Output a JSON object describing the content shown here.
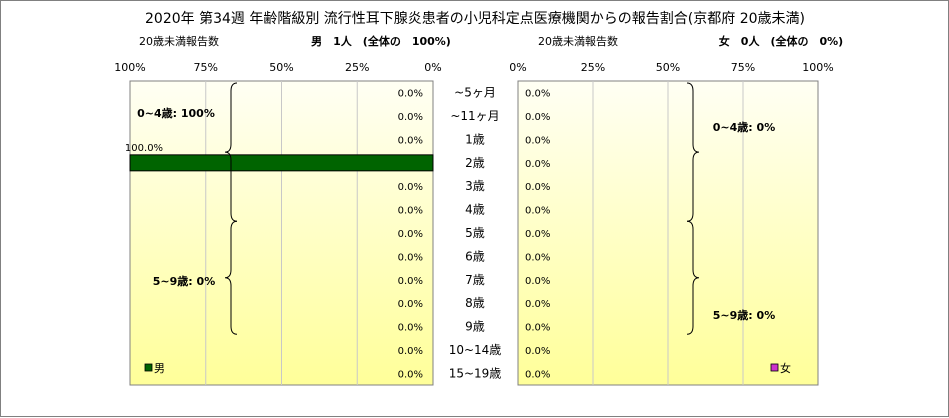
{
  "chart_data": [
    {
      "type": "bar",
      "orientation": "horizontal",
      "side": "left",
      "title": "2020年 第34週 年齢階級別 流行性耳下腺炎患者の小児科定点医療機関からの報告割合(京都府 20歳未満)",
      "subtitle_left": "20歳未満報告数",
      "subtitle_total": "男　1人　(全体の　100%)",
      "categories": [
        "~5ヶ月",
        "~11ヶ月",
        "1歳",
        "2歳",
        "3歳",
        "4歳",
        "5歳",
        "6歳",
        "7歳",
        "8歳",
        "9歳",
        "10~14歳",
        "15~19歳"
      ],
      "series": [
        {
          "name": "男",
          "color": "#006400",
          "values": [
            0,
            0,
            0,
            100,
            0,
            0,
            0,
            0,
            0,
            0,
            0,
            0,
            0
          ]
        }
      ],
      "value_labels": [
        "0.0%",
        "0.0%",
        "0.0%",
        "100.0%",
        "0.0%",
        "0.0%",
        "0.0%",
        "0.0%",
        "0.0%",
        "0.0%",
        "0.0%",
        "0.0%",
        "0.0%"
      ],
      "xlim": [
        0,
        100
      ],
      "x_reversed": true,
      "x_ticks": [
        "100%",
        "75%",
        "50%",
        "25%",
        "0%"
      ],
      "group_labels": [
        "0~4歳: 100%",
        "5~9歳: 0%"
      ],
      "legend_position": "bottom-left",
      "grid": true
    },
    {
      "type": "bar",
      "orientation": "horizontal",
      "side": "right",
      "subtitle_left": "20歳未満報告数",
      "subtitle_total": "女　0人　(全体の　0%)",
      "categories": [
        "~5ヶ月",
        "~11ヶ月",
        "1歳",
        "2歳",
        "3歳",
        "4歳",
        "5歳",
        "6歳",
        "7歳",
        "8歳",
        "9歳",
        "10~14歳",
        "15~19歳"
      ],
      "series": [
        {
          "name": "女",
          "color": "#cc33cc",
          "values": [
            0,
            0,
            0,
            0,
            0,
            0,
            0,
            0,
            0,
            0,
            0,
            0,
            0
          ]
        }
      ],
      "value_labels": [
        "0.0%",
        "0.0%",
        "0.0%",
        "0.0%",
        "0.0%",
        "0.0%",
        "0.0%",
        "0.0%",
        "0.0%",
        "0.0%",
        "0.0%",
        "0.0%",
        "0.0%"
      ],
      "xlim": [
        0,
        100
      ],
      "x_ticks": [
        "0%",
        "25%",
        "50%",
        "75%",
        "100%"
      ],
      "group_labels": [
        "0~4歳: 0%",
        "5~9歳: 0%"
      ],
      "legend_position": "bottom-right",
      "grid": true
    }
  ],
  "colors": {
    "plot_gradient_top": "#fffff4",
    "plot_gradient_bottom": "#ffff99",
    "male_bar": "#006400",
    "female_marker": "#cc33cc",
    "gridline": "#c8c8c8"
  }
}
